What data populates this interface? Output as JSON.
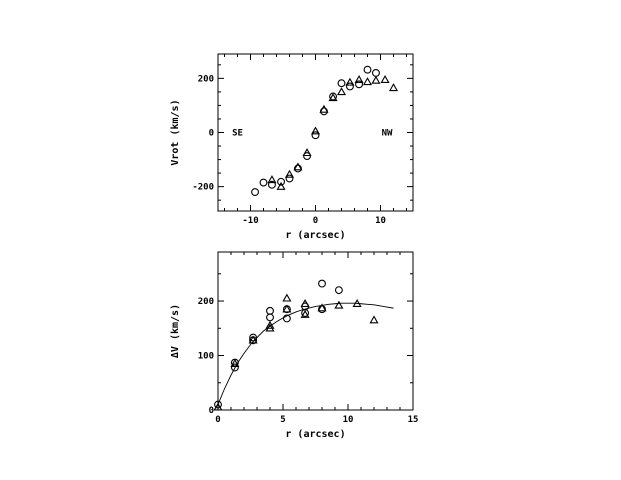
{
  "chart_data": [
    {
      "type": "scatter",
      "title": "",
      "xlabel": "r (arcsec)",
      "ylabel": "Vrot (km/s)",
      "xlim": [
        -15,
        15
      ],
      "ylim": [
        -290,
        290
      ],
      "xticks": [
        -10,
        0,
        10
      ],
      "yticks": [
        -200,
        0,
        200
      ],
      "grid": false,
      "annotations": [
        {
          "text": "SE",
          "x": -12,
          "y": 0
        },
        {
          "text": "NW",
          "x": 11,
          "y": 0
        }
      ],
      "series": [
        {
          "marker": "circle",
          "x": [
            -9.3,
            -8.0,
            -6.7,
            -5.3,
            -4.0,
            -2.7,
            -1.3,
            0,
            1.3,
            2.7,
            4.0,
            5.3,
            6.7,
            8.0,
            9.3
          ],
          "y": [
            -220,
            -185,
            -193,
            -182,
            -170,
            -133,
            -87,
            -10,
            78,
            133,
            182,
            170,
            178,
            232,
            220
          ]
        },
        {
          "marker": "triangle",
          "x": [
            -6.7,
            -5.3,
            -4.0,
            -2.7,
            -1.3,
            0,
            1.3,
            2.7,
            4.0,
            5.3,
            6.7,
            8.0,
            9.3,
            10.7,
            12.0
          ],
          "y": [
            -175,
            -200,
            -155,
            -128,
            -75,
            5,
            85,
            128,
            150,
            185,
            195,
            187,
            192,
            195,
            165
          ]
        }
      ]
    },
    {
      "type": "scatter",
      "title": "",
      "xlabel": "r (arcsec)",
      "ylabel": "ΔV (km/s)",
      "xlim": [
        0,
        15
      ],
      "ylim": [
        0,
        290
      ],
      "xticks": [
        0,
        5,
        10,
        15
      ],
      "yticks": [
        0,
        100,
        200
      ],
      "grid": false,
      "series": [
        {
          "marker": "circle",
          "x": [
            0,
            1.3,
            1.3,
            2.7,
            2.7,
            4.0,
            4.0,
            5.3,
            5.3,
            6.7,
            6.7,
            8.0,
            8.0,
            9.3
          ],
          "y": [
            10,
            78,
            87,
            133,
            128,
            182,
            170,
            185,
            168,
            190,
            178,
            232,
            185,
            220
          ]
        },
        {
          "marker": "triangle",
          "x": [
            0,
            1.3,
            2.7,
            4.0,
            4.0,
            5.3,
            5.3,
            6.7,
            6.7,
            8.0,
            9.3,
            10.7,
            12.0
          ],
          "y": [
            5,
            85,
            128,
            150,
            155,
            205,
            185,
            195,
            175,
            187,
            192,
            195,
            165
          ]
        },
        {
          "marker": "none",
          "line": "solid",
          "x": [
            0,
            0.5,
            1,
            1.5,
            2,
            2.5,
            3,
            3.5,
            4,
            4.5,
            5,
            5.5,
            6,
            6.5,
            7,
            7.5,
            8,
            8.5,
            9,
            9.5,
            10,
            10.5,
            11,
            11.5,
            12,
            12.5,
            13,
            13.5
          ],
          "y": [
            10,
            39,
            64,
            86,
            104,
            120,
            133,
            145,
            154,
            162,
            169,
            175,
            180,
            184,
            187,
            190,
            192,
            194,
            195,
            196,
            196,
            196,
            195,
            194,
            193,
            191,
            189,
            187
          ]
        }
      ]
    }
  ]
}
